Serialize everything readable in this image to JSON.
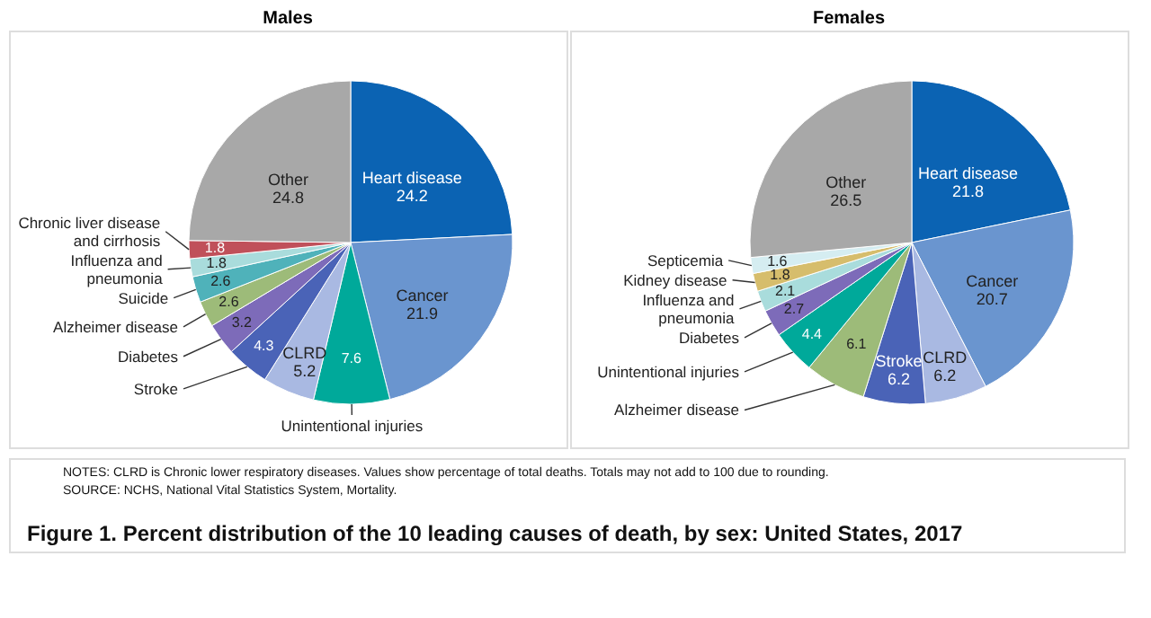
{
  "chart_data": [
    {
      "type": "pie",
      "title": "Males",
      "data_labels": true,
      "legend": false,
      "categories": [
        "Heart disease",
        "Cancer",
        "Unintentional injuries",
        "CLRD",
        "Stroke",
        "Diabetes",
        "Alzheimer disease",
        "Suicide",
        "Influenza and pneumonia",
        "Chronic liver disease and cirrhosis",
        "Other"
      ],
      "values": [
        24.2,
        21.9,
        7.6,
        5.2,
        4.3,
        3.2,
        2.6,
        2.6,
        1.8,
        1.8,
        24.8
      ],
      "colors": [
        "#0b63b3",
        "#6a95cf",
        "#00a99a",
        "#a9b9e2",
        "#4a63b7",
        "#7d6bb9",
        "#9dbb79",
        "#4fb2ba",
        "#a9dcdc",
        "#c0505a",
        "#a8a8a8"
      ],
      "annotations": [
        "NOTES: CLRD is Chronic lower respiratory diseases. Values show percentage of total deaths. Totals may not add to 100 due to rounding.",
        "SOURCE: NCHS, National Vital Statistics System, Mortality.",
        "Figure 1. Percent distribution of the 10 leading causes of death, by sex: United States, 2017"
      ]
    },
    {
      "type": "pie",
      "title": "Females",
      "data_labels": true,
      "legend": false,
      "categories": [
        "Heart disease",
        "Cancer",
        "CLRD",
        "Stroke",
        "Alzheimer disease",
        "Unintentional injuries",
        "Diabetes",
        "Influenza and pneumonia",
        "Kidney disease",
        "Septicemia",
        "Other"
      ],
      "values": [
        21.8,
        20.7,
        6.2,
        6.2,
        6.1,
        4.4,
        2.7,
        2.1,
        1.8,
        1.6,
        26.5
      ],
      "colors": [
        "#0b63b3",
        "#6a95cf",
        "#a9b9e2",
        "#4a63b7",
        "#9dbb79",
        "#00a99a",
        "#7d6bb9",
        "#a9dcdc",
        "#d6bd6c",
        "#d5edf1",
        "#a8a8a8"
      ]
    }
  ]
}
